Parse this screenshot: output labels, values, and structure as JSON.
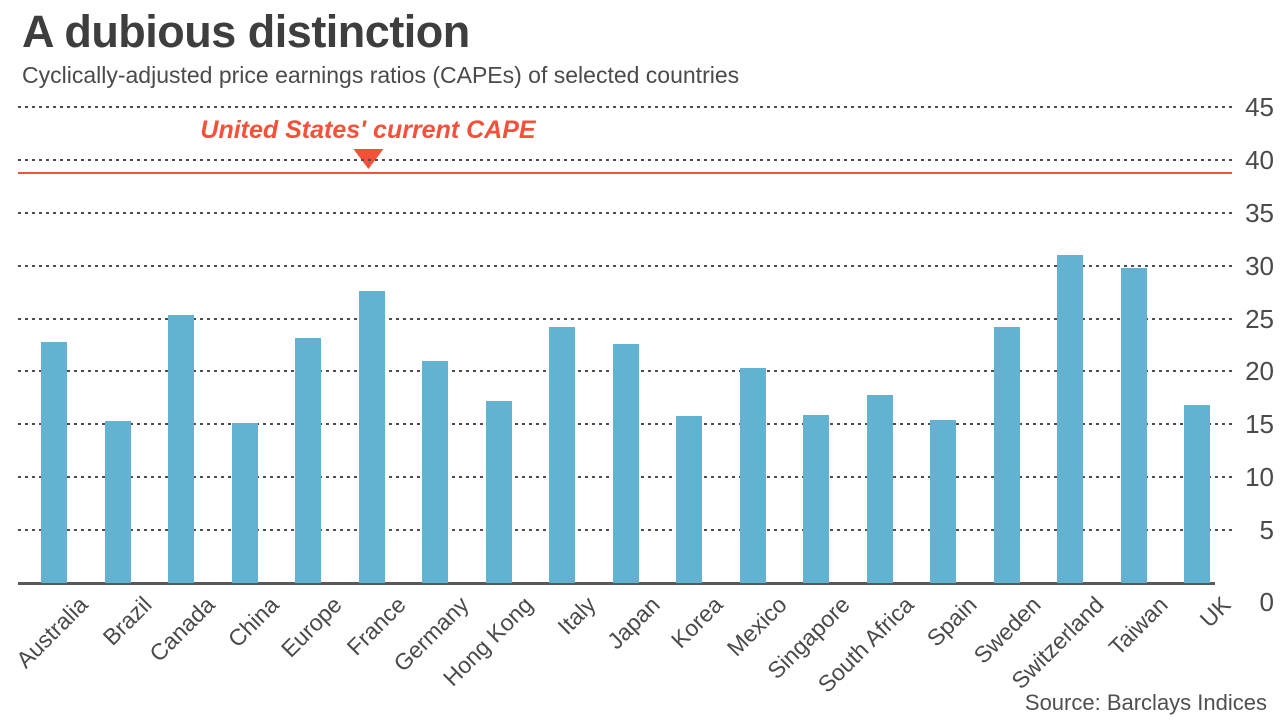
{
  "header": {
    "title": "A dubious distinction",
    "subtitle": "Cyclically-adjusted price earnings ratios (CAPEs) of selected countries"
  },
  "source": "Source: Barclays Indices",
  "colors": {
    "bar": "#64b2d1",
    "accent": "#f4503a",
    "title": "#3e3e3e",
    "text": "#4a4a4a",
    "grid": "#4d4d4d",
    "axis": "#58585a",
    "source_text": "#4f4f4f"
  },
  "chart_data": {
    "type": "bar",
    "title": "A dubious distinction",
    "subtitle": "Cyclically-adjusted price earnings ratios (CAPEs) of selected countries",
    "categories": [
      "Australia",
      "Brazil",
      "Canada",
      "China",
      "Europe",
      "France",
      "Germany",
      "Hong Kong",
      "Italy",
      "Japan",
      "Korea",
      "Mexico",
      "Singapore",
      "South Africa",
      "Spain",
      "Sweden",
      "Switzerland",
      "Taiwan",
      "UK"
    ],
    "values": [
      22.8,
      15.3,
      25.3,
      15.1,
      23.2,
      27.6,
      21.0,
      17.2,
      24.2,
      22.6,
      15.8,
      20.3,
      15.9,
      17.8,
      15.4,
      24.2,
      31.0,
      29.8,
      16.8
    ],
    "xlabel": "",
    "ylabel": "",
    "ylim": [
      0,
      45
    ],
    "yticks": [
      0,
      5,
      10,
      15,
      20,
      25,
      30,
      35,
      40,
      45
    ],
    "grid": "horizontal-dotted",
    "legend": "none",
    "reference_line": {
      "label": "United States' current CAPE",
      "value": 38.8
    },
    "source": "Source: Barclays Indices"
  }
}
